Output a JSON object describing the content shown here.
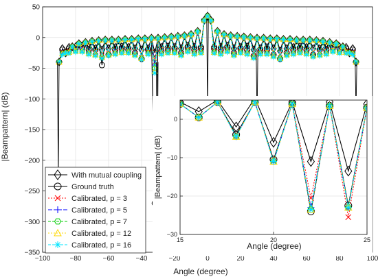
{
  "colors": {
    "with_mutual_coupling": "#000000",
    "ground_truth": "#000000",
    "calibrated_p3": "#ff0000",
    "calibrated_p5": "#0000ff",
    "calibrated_p7": "#00cc00",
    "calibrated_p12": "#ffd700",
    "calibrated_p16": "#00e5ff"
  },
  "chart_data": [
    {
      "id": "main",
      "type": "line",
      "xlabel": "Angle (degree)",
      "ylabel": "|Beampattern| (dB)",
      "xlim": [
        -100,
        100
      ],
      "ylim": [
        -350,
        50
      ],
      "xticks": [
        -100,
        -80,
        -60,
        -40,
        -20,
        0,
        20,
        40,
        60,
        80,
        100
      ],
      "yticks": [
        50,
        0,
        -50,
        -100,
        -150,
        -200,
        -250,
        -300,
        -350
      ],
      "grid": true,
      "legend_position": "bottom-left",
      "legend": [
        {
          "label": "With mutual coupling",
          "marker": "diamond",
          "line": "solid",
          "color": "#000000"
        },
        {
          "label": "Ground truth",
          "marker": "circle",
          "line": "solid",
          "color": "#000000"
        },
        {
          "label": "Calibrated, p = 3",
          "marker": "x",
          "line": "dotted",
          "color": "#ff0000"
        },
        {
          "label": "Calibrated, p = 5",
          "marker": "plus",
          "line": "dashdot",
          "color": "#0000ff"
        },
        {
          "label": "Calibrated, p = 7",
          "marker": "hexagon",
          "line": "dashed",
          "color": "#00cc00"
        },
        {
          "label": "Calibrated, p = 12",
          "marker": "triangle",
          "line": "dotted",
          "color": "#ffd700"
        },
        {
          "label": "Calibrated, p = 16",
          "marker": "asterisk",
          "line": "dashed",
          "color": "#00e5ff"
        }
      ],
      "peaks_x": [
        -90,
        -86,
        -82,
        -78,
        -74,
        -70,
        -66,
        -62,
        -58,
        -54,
        -50,
        -46,
        -42,
        -38,
        -34,
        -30,
        -26,
        -22,
        -18,
        -14,
        -10,
        -6,
        -2,
        0,
        2,
        6,
        10,
        14,
        18,
        22,
        26,
        30,
        34,
        38,
        42,
        46,
        50,
        54,
        58,
        62,
        66,
        70,
        74,
        78,
        82,
        86,
        90
      ],
      "peaks_y": [
        -40,
        -25,
        -15,
        -10,
        -8,
        -6,
        -5,
        -4,
        -4,
        -4,
        -3,
        -3,
        -2,
        -2,
        -1,
        -1,
        0,
        1,
        2,
        3,
        5,
        10,
        28,
        35,
        28,
        10,
        5,
        3,
        2,
        1,
        0,
        -1,
        -1,
        -2,
        -2,
        -3,
        -3,
        -4,
        -4,
        -4,
        -5,
        -6,
        -8,
        -10,
        -15,
        -25,
        -40
      ],
      "nulls_x": [
        -88,
        -84,
        -80,
        -76,
        -72,
        -68,
        -64,
        -60,
        -56,
        -52,
        -48,
        -44,
        -40,
        -36,
        -32,
        -28,
        -24,
        -20,
        -16,
        -12,
        -8,
        -4,
        4,
        8,
        12,
        16,
        20,
        24,
        28,
        32,
        36,
        40,
        44,
        48,
        52,
        56,
        60,
        64,
        68,
        72,
        76,
        80,
        84,
        88
      ],
      "series": [
        {
          "name": "Ground truth",
          "nulls_y": [
            -20,
            -18,
            -18,
            -16,
            -20,
            -20,
            -45,
            -28,
            -20,
            -18,
            -20,
            -25,
            -35,
            -20,
            -270,
            -22,
            -20,
            -18,
            -25,
            -16,
            -20,
            -18,
            -18,
            -20,
            -16,
            -25,
            -18,
            -20,
            -30,
            -22,
            -20,
            -28,
            -35,
            -25,
            -20,
            -18,
            -20,
            -28,
            -20,
            -20,
            -16,
            -18,
            -18,
            -20
          ]
        },
        {
          "name": "With mutual coupling",
          "nulls_y": [
            -18,
            -16,
            -15,
            -14,
            -16,
            -18,
            -20,
            -18,
            -16,
            -15,
            -16,
            -18,
            -20,
            -18,
            -25,
            -16,
            -15,
            -16,
            -18,
            -14,
            -16,
            -15,
            -15,
            -16,
            -14,
            -18,
            -16,
            -15,
            -20,
            -18,
            -16,
            -18,
            -22,
            -18,
            -16,
            -15,
            -16,
            -18,
            -18,
            -16,
            -14,
            -15,
            -16,
            -18
          ]
        },
        {
          "name": "Calibrated, p = 3",
          "nulls_y": [
            -24,
            -22,
            -20,
            -20,
            -24,
            -26,
            -30,
            -26,
            -24,
            -22,
            -22,
            -26,
            -32,
            -24,
            -40,
            -24,
            -22,
            -22,
            -26,
            -20,
            -24,
            -22,
            -22,
            -24,
            -20,
            -26,
            -22,
            -24,
            -30,
            -24,
            -24,
            -28,
            -32,
            -26,
            -24,
            -22,
            -24,
            -28,
            -26,
            -24,
            -20,
            -22,
            -22,
            -24
          ]
        },
        {
          "name": "Calibrated, p = 5",
          "nulls_y": [
            -24,
            -22,
            -20,
            -20,
            -24,
            -26,
            -30,
            -26,
            -24,
            -22,
            -22,
            -26,
            -32,
            -24,
            -45,
            -24,
            -22,
            -22,
            -26,
            -20,
            -24,
            -22,
            -22,
            -24,
            -20,
            -26,
            -22,
            -24,
            -30,
            -24,
            -24,
            -28,
            -32,
            -26,
            -24,
            -22,
            -24,
            -28,
            -26,
            -24,
            -20,
            -22,
            -22,
            -24
          ]
        },
        {
          "name": "Calibrated, p = 7",
          "nulls_y": [
            -26,
            -24,
            -22,
            -22,
            -26,
            -28,
            -32,
            -28,
            -26,
            -24,
            -24,
            -28,
            -34,
            -26,
            -50,
            -26,
            -24,
            -24,
            -28,
            -22,
            -26,
            -24,
            -24,
            -26,
            -22,
            -28,
            -24,
            -26,
            -32,
            -26,
            -26,
            -30,
            -34,
            -28,
            -26,
            -24,
            -26,
            -30,
            -28,
            -26,
            -22,
            -24,
            -24,
            -26
          ]
        },
        {
          "name": "Calibrated, p = 12",
          "nulls_y": [
            -26,
            -24,
            -22,
            -22,
            -26,
            -28,
            -32,
            -28,
            -26,
            -24,
            -24,
            -28,
            -34,
            -26,
            -55,
            -26,
            -24,
            -24,
            -28,
            -22,
            -26,
            -24,
            -24,
            -26,
            -22,
            -28,
            -24,
            -26,
            -32,
            -26,
            -26,
            -30,
            -34,
            -28,
            -26,
            -24,
            -26,
            -30,
            -28,
            -26,
            -22,
            -24,
            -24,
            -26
          ]
        },
        {
          "name": "Calibrated, p = 16",
          "nulls_y": [
            -28,
            -26,
            -24,
            -24,
            -28,
            -30,
            -34,
            -30,
            -28,
            -26,
            -26,
            -30,
            -36,
            -28,
            -58,
            -28,
            -26,
            -26,
            -30,
            -24,
            -28,
            -26,
            -26,
            -28,
            -24,
            -30,
            -26,
            -28,
            -34,
            -28,
            -28,
            -32,
            -36,
            -30,
            -28,
            -26,
            -28,
            -32,
            -30,
            -28,
            -24,
            -26,
            -26,
            -28
          ]
        }
      ],
      "deep_nulls": [
        {
          "series": "Ground truth",
          "points": [
            [
              -91,
              -40
            ],
            [
              -90.5,
              -230
            ],
            [
              -90,
              -40
            ]
          ]
        },
        {
          "series": "Ground truth",
          "points": [
            [
              -31,
              -40
            ],
            [
              -30.5,
              -270
            ],
            [
              -30,
              -40
            ]
          ]
        },
        {
          "series": "Ground truth",
          "points": [
            [
              -0.5,
              30
            ],
            [
              0,
              -120
            ],
            [
              0.5,
              30
            ]
          ]
        },
        {
          "series": "Ground truth",
          "points": [
            [
              29.5,
              -20
            ],
            [
              30,
              -140
            ],
            [
              30.5,
              -20
            ]
          ]
        },
        {
          "series": "Ground truth",
          "points": [
            [
              89.5,
              -40
            ],
            [
              90,
              -120
            ],
            [
              90.5,
              -40
            ]
          ]
        }
      ]
    },
    {
      "id": "inset",
      "type": "line",
      "xlabel": "Angle (degree)",
      "ylabel": "|Beampattern| (dB)",
      "xlim": [
        15,
        25
      ],
      "ylim": [
        -30,
        5
      ],
      "xticks": [
        15,
        20,
        25
      ],
      "yticks": [
        0,
        -10,
        -20,
        -30
      ],
      "grid": true,
      "x": [
        15,
        16,
        17,
        18,
        19,
        20,
        21,
        22,
        23,
        24,
        25
      ],
      "series": [
        {
          "name": "With mutual coupling",
          "values": [
            4.5,
            2,
            5,
            -2,
            5.5,
            -6,
            4.5,
            -11,
            4.5,
            -13.5,
            4
          ]
        },
        {
          "name": "Ground truth",
          "values": [
            4,
            0.5,
            4.5,
            -4,
            4.5,
            -10.5,
            4,
            -24,
            3.5,
            -22.5,
            3
          ]
        },
        {
          "name": "Calibrated, p = 3",
          "values": [
            4,
            0.5,
            4.5,
            -4.5,
            4.5,
            -11,
            4,
            -20.5,
            3.5,
            -25.5,
            3
          ]
        },
        {
          "name": "Calibrated, p = 5",
          "values": [
            4,
            0.5,
            4.5,
            -4.5,
            4.5,
            -11,
            4,
            -23,
            3.5,
            -23,
            3
          ]
        },
        {
          "name": "Calibrated, p = 7",
          "values": [
            4,
            0.5,
            4.5,
            -4.5,
            4.5,
            -11,
            4,
            -23.5,
            3.5,
            -23,
            3
          ]
        },
        {
          "name": "Calibrated, p = 12",
          "values": [
            4,
            0.5,
            4.5,
            -4.5,
            4.5,
            -11,
            4,
            -23.5,
            3.5,
            -23,
            3
          ]
        },
        {
          "name": "Calibrated, p = 16",
          "values": [
            4,
            0.5,
            4.5,
            -4.5,
            4.5,
            -11,
            4,
            -23.5,
            3.5,
            -23,
            3
          ]
        }
      ]
    }
  ]
}
